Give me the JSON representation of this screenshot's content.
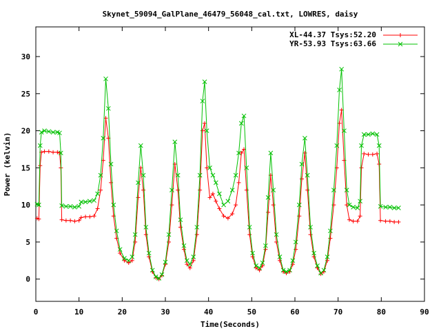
{
  "chart_data": {
    "type": "line",
    "title": "Skynet_59094_GalPlane_46479_56048_cal.txt, LOWRES, daisy",
    "xlabel": "Time(Seconds)",
    "ylabel": "Power (kelvin)",
    "xlim": [
      0,
      90
    ],
    "ylim": [
      -3,
      34
    ],
    "xticks": [
      0,
      10,
      20,
      30,
      40,
      50,
      60,
      70,
      80,
      90
    ],
    "yticks": [
      0,
      5,
      10,
      15,
      20,
      25,
      30
    ],
    "grid": false,
    "legend_position": "top-right",
    "series": [
      {
        "name": "XL-44.37 Tsys:52.20",
        "color": "#ff0000",
        "marker": "plus",
        "points": [
          [
            0.3,
            8.2
          ],
          [
            0.7,
            8.1
          ],
          [
            1.0,
            15.3
          ],
          [
            1.3,
            17.1
          ],
          [
            2.0,
            17.2
          ],
          [
            3.0,
            17.2
          ],
          [
            4.0,
            17.1
          ],
          [
            5.0,
            17.1
          ],
          [
            5.5,
            17.0
          ],
          [
            5.8,
            15.0
          ],
          [
            6.0,
            8.0
          ],
          [
            7.0,
            7.9
          ],
          [
            8.0,
            7.9
          ],
          [
            9.0,
            7.8
          ],
          [
            10.0,
            7.9
          ],
          [
            10.5,
            8.3
          ],
          [
            11.5,
            8.4
          ],
          [
            12.5,
            8.4
          ],
          [
            13.5,
            8.5
          ],
          [
            14.3,
            9.5
          ],
          [
            15.0,
            12.0
          ],
          [
            15.6,
            16.0
          ],
          [
            16.2,
            21.7
          ],
          [
            16.8,
            19.0
          ],
          [
            17.4,
            13.0
          ],
          [
            18.0,
            8.5
          ],
          [
            18.7,
            5.5
          ],
          [
            19.5,
            3.5
          ],
          [
            20.5,
            2.5
          ],
          [
            21.5,
            2.2
          ],
          [
            22.3,
            2.5
          ],
          [
            23.0,
            5.0
          ],
          [
            23.7,
            11.0
          ],
          [
            24.3,
            15.0
          ],
          [
            24.9,
            12.0
          ],
          [
            25.5,
            6.0
          ],
          [
            26.2,
            3.0
          ],
          [
            27.0,
            1.0
          ],
          [
            27.8,
            0.2
          ],
          [
            28.5,
            0.0
          ],
          [
            29.2,
            0.5
          ],
          [
            30.0,
            2.0
          ],
          [
            30.8,
            5.0
          ],
          [
            31.5,
            10.0
          ],
          [
            32.2,
            15.5
          ],
          [
            32.9,
            12.0
          ],
          [
            33.5,
            7.0
          ],
          [
            34.3,
            4.0
          ],
          [
            35.0,
            2.0
          ],
          [
            35.7,
            1.5
          ],
          [
            36.5,
            2.5
          ],
          [
            37.3,
            6.0
          ],
          [
            38.0,
            12.0
          ],
          [
            38.6,
            20.0
          ],
          [
            39.1,
            21.0
          ],
          [
            39.6,
            15.0
          ],
          [
            40.3,
            11.0
          ],
          [
            41.0,
            11.5
          ],
          [
            41.7,
            10.5
          ],
          [
            42.5,
            9.5
          ],
          [
            43.5,
            8.5
          ],
          [
            44.5,
            8.2
          ],
          [
            45.5,
            8.8
          ],
          [
            46.3,
            10.0
          ],
          [
            47.0,
            13.0
          ],
          [
            47.6,
            17.0
          ],
          [
            48.2,
            17.5
          ],
          [
            48.8,
            12.0
          ],
          [
            49.5,
            6.0
          ],
          [
            50.2,
            3.0
          ],
          [
            51.0,
            1.5
          ],
          [
            51.8,
            1.2
          ],
          [
            52.5,
            1.8
          ],
          [
            53.2,
            4.0
          ],
          [
            53.8,
            9.0
          ],
          [
            54.4,
            14.0
          ],
          [
            55.0,
            10.0
          ],
          [
            55.7,
            5.0
          ],
          [
            56.5,
            2.5
          ],
          [
            57.3,
            1.0
          ],
          [
            58.0,
            0.8
          ],
          [
            58.8,
            1.0
          ],
          [
            59.5,
            2.0
          ],
          [
            60.2,
            4.0
          ],
          [
            61.0,
            8.5
          ],
          [
            61.6,
            13.5
          ],
          [
            62.3,
            17.0
          ],
          [
            62.9,
            12.0
          ],
          [
            63.6,
            6.0
          ],
          [
            64.4,
            3.0
          ],
          [
            65.2,
            1.5
          ],
          [
            66.0,
            0.7
          ],
          [
            66.7,
            1.0
          ],
          [
            67.5,
            2.5
          ],
          [
            68.2,
            5.5
          ],
          [
            69.0,
            10.0
          ],
          [
            69.7,
            15.0
          ],
          [
            70.3,
            21.0
          ],
          [
            70.8,
            22.8
          ],
          [
            71.4,
            16.0
          ],
          [
            72.0,
            10.0
          ],
          [
            72.6,
            8.0
          ],
          [
            73.5,
            7.8
          ],
          [
            74.5,
            7.8
          ],
          [
            75.1,
            8.5
          ],
          [
            75.4,
            15.0
          ],
          [
            76.0,
            16.9
          ],
          [
            77.0,
            16.8
          ],
          [
            78.0,
            16.8
          ],
          [
            79.0,
            16.9
          ],
          [
            79.5,
            15.5
          ],
          [
            79.8,
            7.9
          ],
          [
            81.0,
            7.8
          ],
          [
            82.0,
            7.8
          ],
          [
            83.0,
            7.7
          ],
          [
            84.0,
            7.7
          ]
        ]
      },
      {
        "name": "YR-53.93 Tsys:63.66",
        "color": "#00c000",
        "marker": "cross",
        "points": [
          [
            0.3,
            10.1
          ],
          [
            0.7,
            10.0
          ],
          [
            1.0,
            18.0
          ],
          [
            1.3,
            19.8
          ],
          [
            2.0,
            20.0
          ],
          [
            3.0,
            19.9
          ],
          [
            4.0,
            19.8
          ],
          [
            5.0,
            19.8
          ],
          [
            5.5,
            19.7
          ],
          [
            5.8,
            17.0
          ],
          [
            6.0,
            9.9
          ],
          [
            7.0,
            9.8
          ],
          [
            8.0,
            9.8
          ],
          [
            9.0,
            9.7
          ],
          [
            10.0,
            9.8
          ],
          [
            10.5,
            10.4
          ],
          [
            11.5,
            10.4
          ],
          [
            12.5,
            10.5
          ],
          [
            13.5,
            10.6
          ],
          [
            14.3,
            11.5
          ],
          [
            15.0,
            14.0
          ],
          [
            15.6,
            19.0
          ],
          [
            16.2,
            27.0
          ],
          [
            16.8,
            23.0
          ],
          [
            17.4,
            15.5
          ],
          [
            18.0,
            10.0
          ],
          [
            18.7,
            6.5
          ],
          [
            19.5,
            4.0
          ],
          [
            20.5,
            2.8
          ],
          [
            21.5,
            2.5
          ],
          [
            22.3,
            3.0
          ],
          [
            23.0,
            6.0
          ],
          [
            23.7,
            13.0
          ],
          [
            24.3,
            18.0
          ],
          [
            24.9,
            14.0
          ],
          [
            25.5,
            7.0
          ],
          [
            26.2,
            3.5
          ],
          [
            27.0,
            1.2
          ],
          [
            27.8,
            0.3
          ],
          [
            28.5,
            0.1
          ],
          [
            29.2,
            0.6
          ],
          [
            30.0,
            2.3
          ],
          [
            30.8,
            6.0
          ],
          [
            31.5,
            12.0
          ],
          [
            32.2,
            18.5
          ],
          [
            32.9,
            14.0
          ],
          [
            33.5,
            8.0
          ],
          [
            34.3,
            4.5
          ],
          [
            35.0,
            2.5
          ],
          [
            35.7,
            2.0
          ],
          [
            36.5,
            3.0
          ],
          [
            37.3,
            7.0
          ],
          [
            38.0,
            14.0
          ],
          [
            38.6,
            24.0
          ],
          [
            39.1,
            26.6
          ],
          [
            39.6,
            20.0
          ],
          [
            40.3,
            15.0
          ],
          [
            41.0,
            14.0
          ],
          [
            41.7,
            13.0
          ],
          [
            42.5,
            11.5
          ],
          [
            43.5,
            10.0
          ],
          [
            44.5,
            10.5
          ],
          [
            45.5,
            12.0
          ],
          [
            46.3,
            14.0
          ],
          [
            47.0,
            17.0
          ],
          [
            47.6,
            21.0
          ],
          [
            48.2,
            22.0
          ],
          [
            48.8,
            15.0
          ],
          [
            49.5,
            7.0
          ],
          [
            50.2,
            3.5
          ],
          [
            51.0,
            1.8
          ],
          [
            51.8,
            1.5
          ],
          [
            52.5,
            2.2
          ],
          [
            53.2,
            4.5
          ],
          [
            53.8,
            11.0
          ],
          [
            54.4,
            17.0
          ],
          [
            55.0,
            12.0
          ],
          [
            55.7,
            6.0
          ],
          [
            56.5,
            3.0
          ],
          [
            57.3,
            1.2
          ],
          [
            58.0,
            1.0
          ],
          [
            58.8,
            1.2
          ],
          [
            59.5,
            2.5
          ],
          [
            60.2,
            5.0
          ],
          [
            61.0,
            10.0
          ],
          [
            61.6,
            15.5
          ],
          [
            62.3,
            19.0
          ],
          [
            62.9,
            14.0
          ],
          [
            63.6,
            7.0
          ],
          [
            64.4,
            3.5
          ],
          [
            65.2,
            1.8
          ],
          [
            66.0,
            0.8
          ],
          [
            66.7,
            1.2
          ],
          [
            67.5,
            3.0
          ],
          [
            68.2,
            6.5
          ],
          [
            69.0,
            12.0
          ],
          [
            69.7,
            18.0
          ],
          [
            70.3,
            25.5
          ],
          [
            70.8,
            28.3
          ],
          [
            71.4,
            20.0
          ],
          [
            72.0,
            12.0
          ],
          [
            72.6,
            10.0
          ],
          [
            73.5,
            9.7
          ],
          [
            74.5,
            9.6
          ],
          [
            75.1,
            10.5
          ],
          [
            75.4,
            18.0
          ],
          [
            76.0,
            19.5
          ],
          [
            77.0,
            19.5
          ],
          [
            78.0,
            19.6
          ],
          [
            79.0,
            19.5
          ],
          [
            79.5,
            18.0
          ],
          [
            79.8,
            9.8
          ],
          [
            81.0,
            9.7
          ],
          [
            82.0,
            9.7
          ],
          [
            83.0,
            9.6
          ],
          [
            84.0,
            9.6
          ]
        ]
      }
    ]
  }
}
